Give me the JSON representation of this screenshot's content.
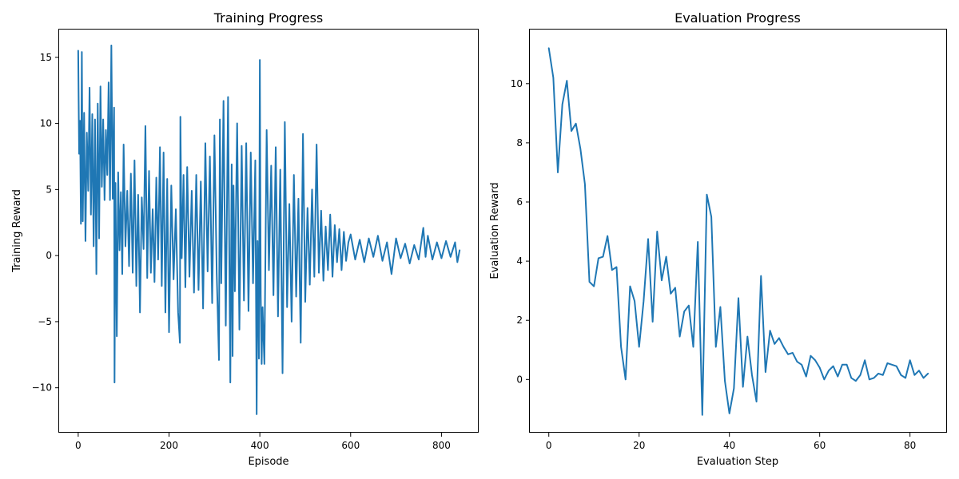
{
  "chart_data": [
    {
      "type": "line",
      "title": "Training Progress",
      "xlabel": "Episode",
      "ylabel": "Training Reward",
      "xlim": [
        -42,
        882
      ],
      "ylim": [
        -13.4,
        17.1
      ],
      "xticks": [
        0,
        200,
        400,
        600,
        800
      ],
      "yticks": [
        -10,
        -5,
        0,
        5,
        10,
        15
      ],
      "ytick_labels": [
        "−10",
        "−5",
        "0",
        "5",
        "10",
        "15"
      ],
      "grid": false,
      "color": "#1f77b4",
      "series": [
        {
          "x": [
            0,
            2,
            4,
            6,
            8,
            10,
            13,
            16,
            19,
            22,
            25,
            28,
            31,
            34,
            37,
            40,
            43,
            46,
            49,
            52,
            55,
            58,
            61,
            64,
            67,
            70,
            73,
            76,
            79,
            80,
            82,
            85,
            88,
            91,
            94,
            97,
            100,
            104,
            108,
            112,
            116,
            120,
            124,
            128,
            132,
            136,
            140,
            144,
            148,
            152,
            156,
            160,
            164,
            168,
            172,
            176,
            180,
            184,
            188,
            192,
            196,
            200,
            205,
            210,
            215,
            220,
            224,
            225,
            228,
            232,
            236,
            240,
            245,
            250,
            255,
            260,
            265,
            270,
            275,
            280,
            285,
            290,
            295,
            300,
            305,
            310,
            312,
            315,
            320,
            325,
            330,
            335,
            338,
            340,
            342,
            345,
            350,
            355,
            360,
            365,
            370,
            375,
            380,
            385,
            390,
            393,
            395,
            398,
            400,
            402,
            404,
            406,
            410,
            415,
            420,
            425,
            430,
            435,
            440,
            445,
            450,
            455,
            460,
            465,
            470,
            475,
            480,
            485,
            490,
            495,
            500,
            505,
            510,
            515,
            520,
            525,
            530,
            535,
            540,
            545,
            550,
            555,
            560,
            565,
            570,
            575,
            580,
            585,
            590,
            595,
            600,
            610,
            620,
            630,
            640,
            650,
            660,
            670,
            680,
            690,
            700,
            710,
            720,
            730,
            740,
            750,
            760,
            765,
            770,
            780,
            790,
            800,
            810,
            820,
            830,
            835,
            840
          ],
          "y": [
            15.5,
            7.7,
            10.2,
            2.4,
            15.4,
            2.6,
            10.8,
            1.1,
            9.3,
            4.9,
            12.7,
            3.1,
            10.7,
            0.7,
            10.3,
            -1.4,
            11.5,
            1.3,
            12.8,
            5.2,
            10.3,
            4.2,
            9.5,
            6.1,
            13.1,
            4.2,
            15.9,
            4.3,
            11.2,
            -9.6,
            5.5,
            -6.1,
            6.3,
            0.4,
            4.8,
            -1.4,
            8.4,
            0.7,
            4.9,
            -0.8,
            6.2,
            -1.3,
            7.2,
            -2.3,
            4.6,
            -4.3,
            4.4,
            0.5,
            9.8,
            -1.7,
            6.4,
            -1.3,
            3.5,
            -2.0,
            5.9,
            -0.3,
            8.2,
            -2.3,
            7.8,
            -4.3,
            5.8,
            -5.8,
            5.3,
            -1.8,
            3.5,
            -4.3,
            -6.6,
            10.5,
            -0.2,
            6.1,
            -2.4,
            6.7,
            -1.6,
            4.9,
            -2.8,
            6.1,
            -2.6,
            5.6,
            -4.0,
            8.5,
            -1.2,
            7.5,
            -3.6,
            9.1,
            -1.3,
            -7.9,
            10.3,
            -2.1,
            11.7,
            -5.3,
            12.0,
            -9.6,
            6.9,
            -7.6,
            5.3,
            -2.7,
            10.0,
            -5.6,
            8.3,
            -3.4,
            8.5,
            -4.2,
            7.8,
            -2.1,
            7.2,
            -12.0,
            1.1,
            -7.8,
            14.8,
            -3.0,
            -8.2,
            -3.9,
            -8.2,
            9.5,
            -1.1,
            6.8,
            -3.0,
            8.2,
            -4.6,
            6.5,
            -8.9,
            10.1,
            -3.9,
            3.9,
            -5.0,
            6.1,
            -3.1,
            4.3,
            -6.6,
            9.2,
            -3.5,
            3.6,
            -2.2,
            5.0,
            -1.6,
            8.4,
            -1.3,
            3.4,
            -1.9,
            2.2,
            -1.1,
            3.1,
            -1.6,
            2.3,
            -0.5,
            2.0,
            -1.1,
            1.8,
            -0.4,
            1.0,
            1.6,
            -0.3,
            1.2,
            -0.5,
            1.3,
            -0.1,
            1.5,
            -0.4,
            1.0,
            -1.4,
            1.3,
            -0.2,
            0.9,
            -0.6,
            0.8,
            -0.3,
            2.1,
            -0.1,
            1.5,
            -0.3,
            1.0,
            -0.2,
            1.1,
            -0.1,
            1.0,
            -0.5,
            0.4
          ]
        }
      ]
    },
    {
      "type": "line",
      "title": "Evaluation Progress",
      "xlabel": "Evaluation Step",
      "ylabel": "Evaluation Reward",
      "xlim": [
        -4.2,
        88.2
      ],
      "ylim": [
        -1.8,
        11.83
      ],
      "xticks": [
        0,
        20,
        40,
        60,
        80
      ],
      "yticks": [
        0,
        2,
        4,
        6,
        8,
        10
      ],
      "grid": false,
      "color": "#1f77b4",
      "series": [
        {
          "x": [
            0,
            1,
            2,
            3,
            4,
            5,
            6,
            7,
            8,
            9,
            10,
            11,
            12,
            13,
            14,
            15,
            16,
            17,
            18,
            19,
            20,
            21,
            22,
            23,
            24,
            25,
            26,
            27,
            28,
            29,
            30,
            31,
            32,
            33,
            34,
            35,
            36,
            37,
            38,
            39,
            40,
            41,
            42,
            43,
            44,
            45,
            46,
            47,
            48,
            49,
            50,
            51,
            52,
            53,
            54,
            55,
            56,
            57,
            58,
            59,
            60,
            61,
            62,
            63,
            64,
            65,
            66,
            67,
            68,
            69,
            70,
            71,
            72,
            73,
            74,
            75,
            76,
            77,
            78,
            79,
            80,
            81,
            82,
            83,
            84
          ],
          "y": [
            11.2,
            10.2,
            7.0,
            9.3,
            10.1,
            8.4,
            8.65,
            7.8,
            6.6,
            3.3,
            3.15,
            4.1,
            4.15,
            4.85,
            3.7,
            3.8,
            1.1,
            0.0,
            3.15,
            2.65,
            1.1,
            2.65,
            4.75,
            1.95,
            5.0,
            3.35,
            4.15,
            2.9,
            3.1,
            1.45,
            2.3,
            2.5,
            1.1,
            4.65,
            -1.2,
            6.25,
            5.5,
            1.1,
            2.45,
            -0.05,
            -1.15,
            -0.3,
            2.75,
            -0.25,
            1.45,
            0.15,
            -0.75,
            3.5,
            0.25,
            1.65,
            1.2,
            1.4,
            1.1,
            0.85,
            0.9,
            0.6,
            0.5,
            0.1,
            0.8,
            0.65,
            0.4,
            0.0,
            0.3,
            0.45,
            0.1,
            0.5,
            0.5,
            0.05,
            -0.05,
            0.15,
            0.65,
            0.0,
            0.05,
            0.2,
            0.15,
            0.55,
            0.5,
            0.45,
            0.15,
            0.05,
            0.65,
            0.15,
            0.3,
            0.05,
            0.2
          ]
        }
      ]
    }
  ]
}
